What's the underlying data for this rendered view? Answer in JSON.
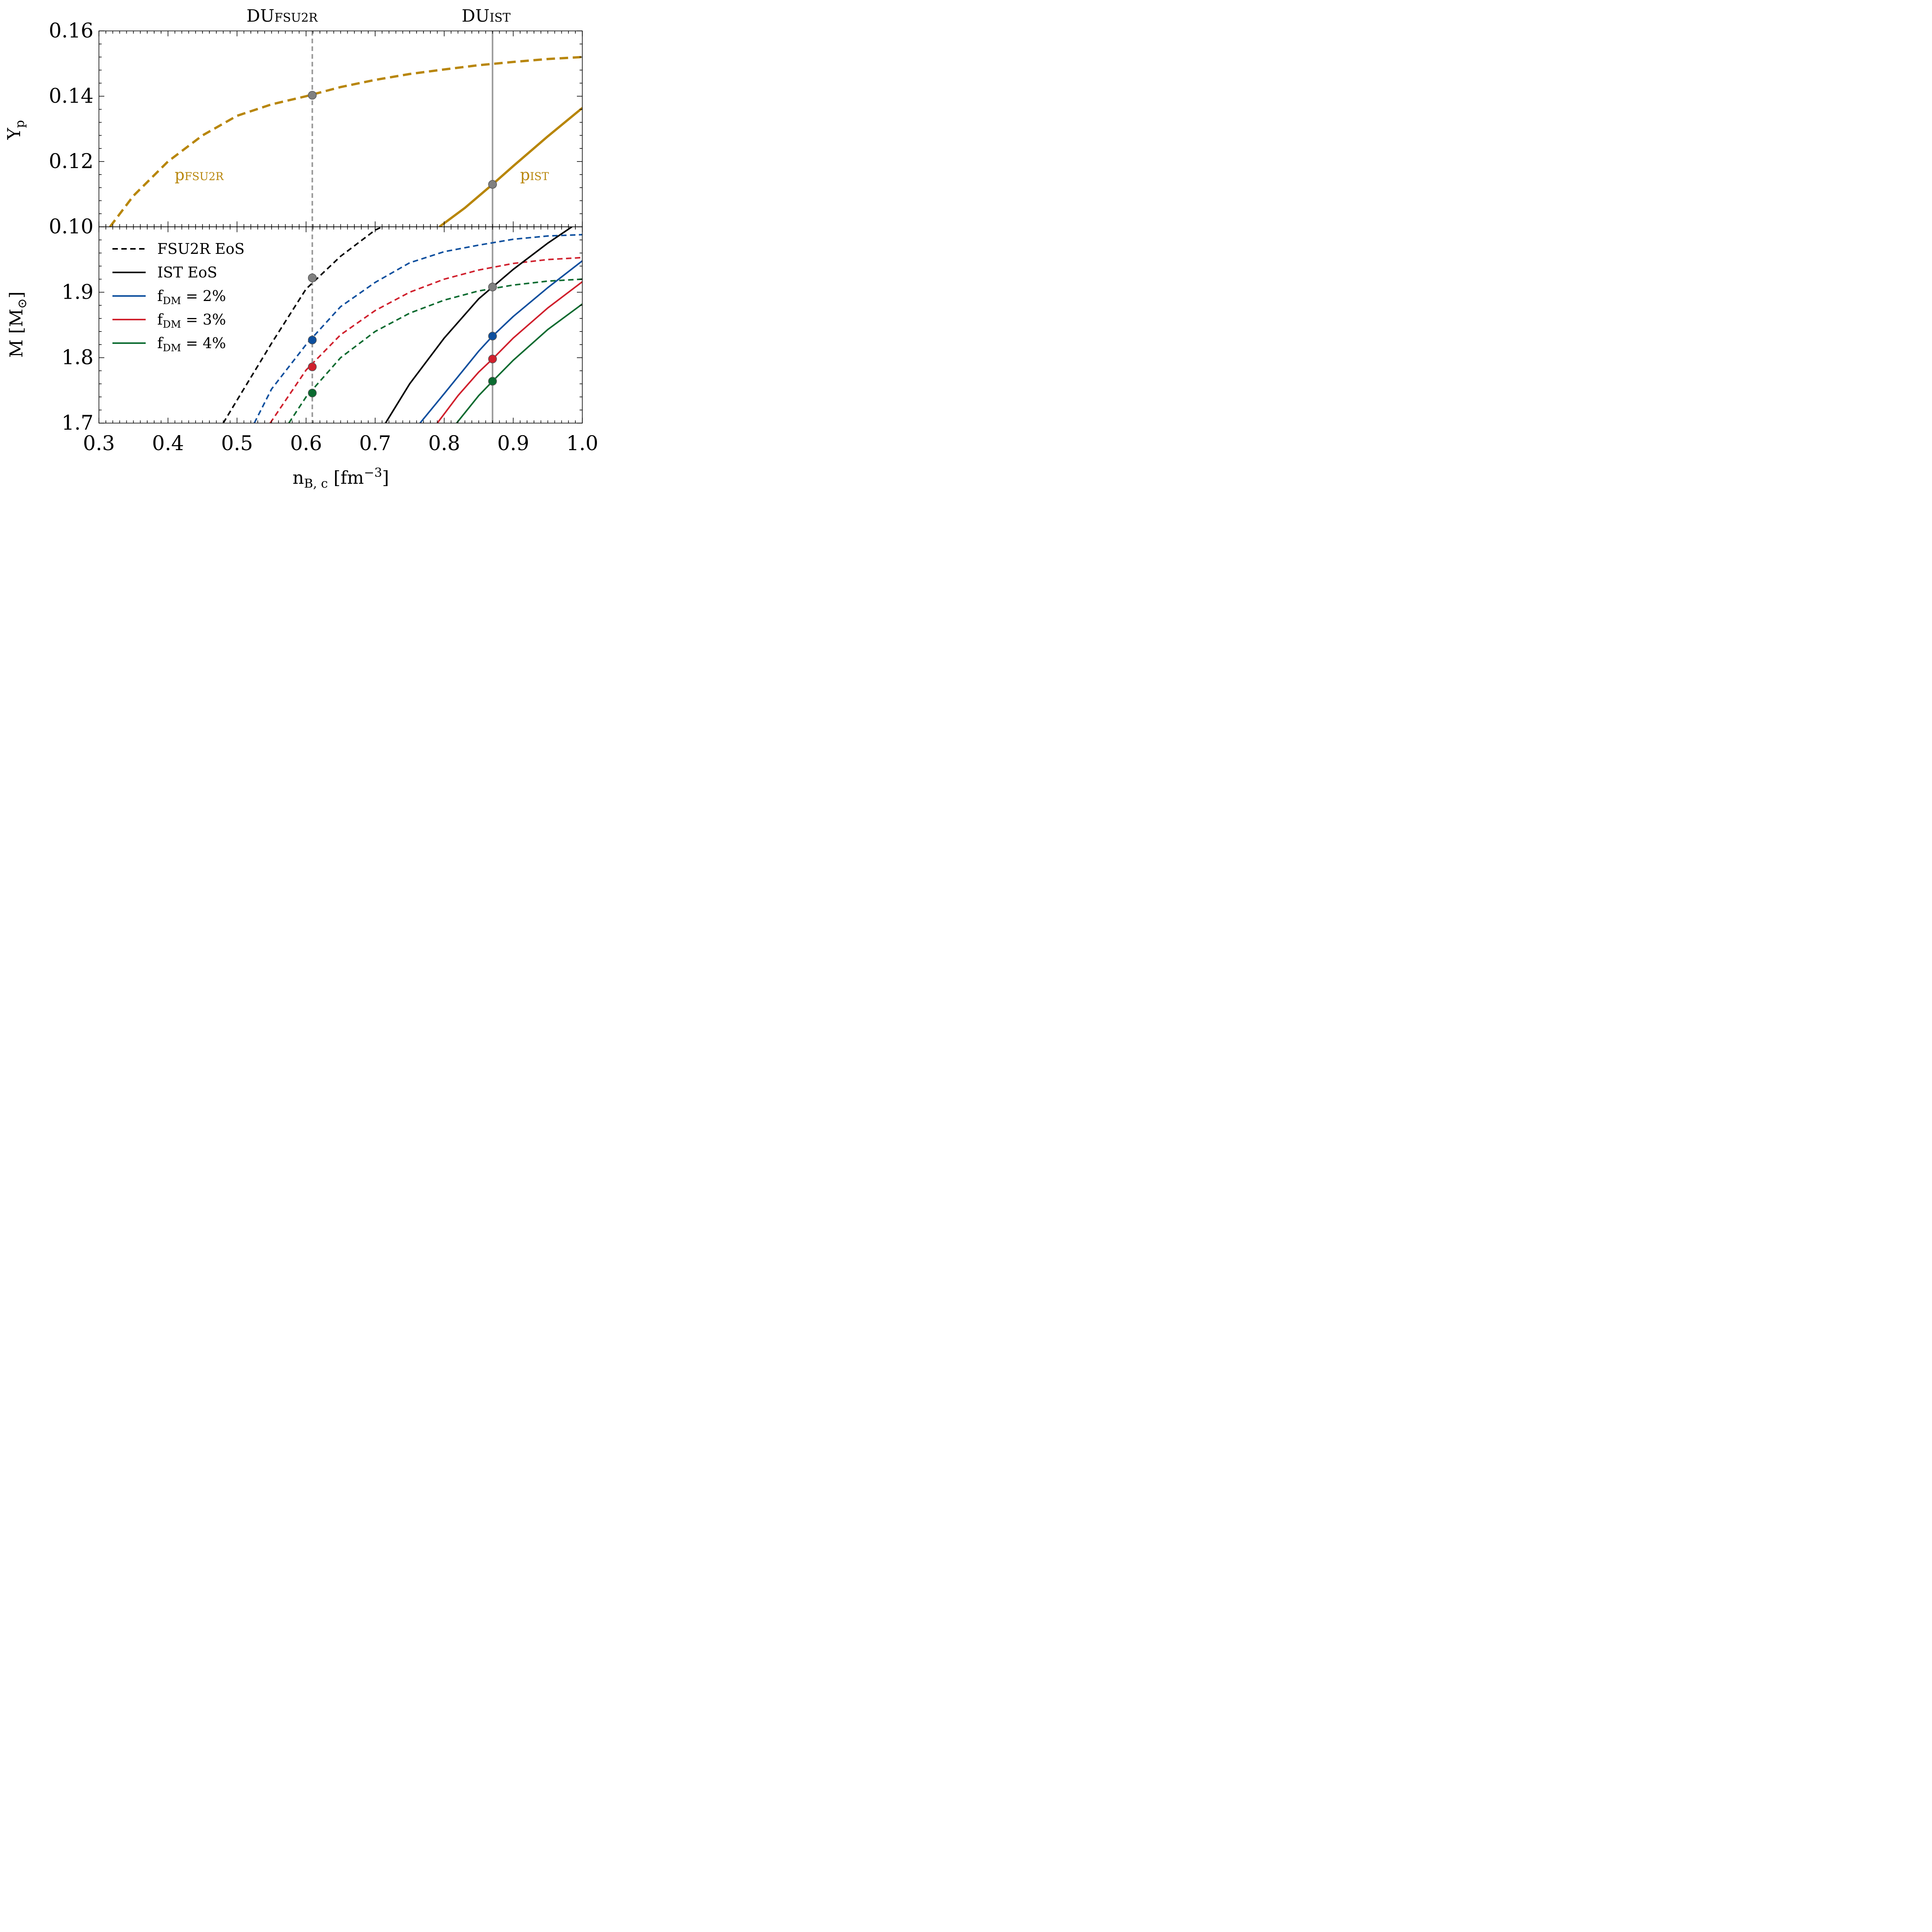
{
  "colors": {
    "proton": "#B8860B",
    "black": "#000000",
    "blue": "#0D4F9E",
    "red": "#D0202D",
    "green": "#0B6B30",
    "gray_marker": "#808080",
    "du_line": "#999999"
  },
  "top_labels": {
    "du_fsu2r": {
      "main": "DU",
      "sub": "FSU2R"
    },
    "du_ist": {
      "main": "DU",
      "sub": "IST"
    }
  },
  "chart_data": [
    {
      "type": "line",
      "panel": "top",
      "ylabel": {
        "main": "Y",
        "sub": "p"
      },
      "xlim": [
        0.3,
        1.0
      ],
      "ylim": [
        0.1,
        0.16
      ],
      "yticks": [
        "0.16",
        "0.14",
        "0.12",
        "0.10"
      ],
      "ytick_values": [
        0.16,
        0.14,
        0.12,
        0.1
      ],
      "xticks": [
        "0.3",
        "0.4",
        "0.5",
        "0.6",
        "0.7",
        "0.8",
        "0.9",
        "1.0"
      ],
      "xtick_values": [
        0.3,
        0.4,
        0.5,
        0.6,
        0.7,
        0.8,
        0.9,
        1.0
      ],
      "annotations": [
        {
          "main": "p",
          "sub": "FSU2R",
          "color": "#B8860B"
        },
        {
          "main": "p",
          "sub": "IST",
          "color": "#B8860B"
        }
      ],
      "series": [
        {
          "style": "dashed",
          "color": "#B8860B",
          "x": [
            0.316,
            0.35,
            0.4,
            0.45,
            0.5,
            0.55,
            0.6,
            0.65,
            0.7,
            0.75,
            0.8,
            0.85,
            0.9,
            0.95,
            1.0
          ],
          "y": [
            0.1,
            0.1095,
            0.12,
            0.128,
            0.134,
            0.1375,
            0.14,
            0.1428,
            0.145,
            0.1468,
            0.1482,
            0.1495,
            0.1505,
            0.1514,
            0.152
          ]
        },
        {
          "style": "solid",
          "color": "#B8860B",
          "x": [
            0.793,
            0.83,
            0.87,
            0.9,
            0.95,
            1.0
          ],
          "y": [
            0.1,
            0.1058,
            0.113,
            0.1186,
            0.1277,
            0.1364
          ]
        }
      ],
      "markers": [
        {
          "x": 0.609,
          "y": 0.1403,
          "color": "#808080"
        },
        {
          "x": 0.87,
          "y": 0.113,
          "color": "#808080"
        }
      ],
      "vlines": [
        {
          "x": 0.609,
          "style": "dashed",
          "color": "#999999"
        },
        {
          "x": 0.87,
          "style": "solid",
          "color": "#999999"
        }
      ]
    },
    {
      "type": "line",
      "panel": "bottom",
      "xlabel": {
        "main": "n",
        "sub": "B, c",
        "unit": " [fm",
        "sup": "−3",
        "close": "]"
      },
      "ylabel": {
        "main": "M [M",
        "sub": "⊙",
        "close": "]"
      },
      "xlim": [
        0.3,
        1.0
      ],
      "ylim": [
        1.7,
        2.0
      ],
      "yticks": [
        "1.9",
        "1.8",
        "1.7"
      ],
      "ytick_values": [
        1.9,
        1.8,
        1.7
      ],
      "xticks": [
        "0.3",
        "0.4",
        "0.5",
        "0.6",
        "0.7",
        "0.8",
        "0.9",
        "1.0"
      ],
      "xtick_values": [
        0.3,
        0.4,
        0.5,
        0.6,
        0.7,
        0.8,
        0.9,
        1.0
      ],
      "legend": {
        "position": "upper-left",
        "entries": [
          {
            "label": "FSU2R EoS",
            "style": "dashed",
            "color": "#000000"
          },
          {
            "label": "IST EoS",
            "style": "solid",
            "color": "#000000"
          },
          {
            "label_main": "f",
            "label_sub": "DM",
            "label_rest": " = 2%",
            "style": "solid",
            "color": "#0D4F9E"
          },
          {
            "label_main": "f",
            "label_sub": "DM",
            "label_rest": " = 3%",
            "style": "solid",
            "color": "#D0202D"
          },
          {
            "label_main": "f",
            "label_sub": "DM",
            "label_rest": " = 4%",
            "style": "solid",
            "color": "#0B6B30"
          }
        ]
      },
      "series": [
        {
          "name": "FSU2R EoS",
          "style": "dashed",
          "color": "#000000",
          "x": [
            0.48,
            0.5,
            0.55,
            0.6,
            0.65,
            0.7,
            0.71
          ],
          "y": [
            1.7,
            1.735,
            1.822,
            1.905,
            1.955,
            1.995,
            2.0
          ]
        },
        {
          "style": "dashed",
          "color": "#0D4F9E",
          "x": [
            0.525,
            0.55,
            0.6,
            0.65,
            0.7,
            0.75,
            0.8,
            0.85,
            0.9,
            0.95,
            1.0
          ],
          "y": [
            1.7,
            1.752,
            1.82,
            1.878,
            1.915,
            1.945,
            1.962,
            1.972,
            1.981,
            1.986,
            1.988
          ]
        },
        {
          "style": "dashed",
          "color": "#D0202D",
          "x": [
            0.548,
            0.6,
            0.65,
            0.7,
            0.75,
            0.8,
            0.85,
            0.9,
            0.95,
            1.0
          ],
          "y": [
            1.7,
            1.781,
            1.835,
            1.872,
            1.9,
            1.92,
            1.934,
            1.944,
            1.95,
            1.953
          ]
        },
        {
          "style": "dashed",
          "color": "#0B6B30",
          "x": [
            0.575,
            0.6,
            0.65,
            0.7,
            0.75,
            0.8,
            0.85,
            0.9,
            0.95,
            1.0
          ],
          "y": [
            1.7,
            1.74,
            1.8,
            1.84,
            1.868,
            1.888,
            1.902,
            1.911,
            1.917,
            1.92
          ]
        },
        {
          "name": "IST EoS",
          "style": "solid",
          "color": "#000000",
          "x": [
            0.715,
            0.75,
            0.8,
            0.85,
            0.87,
            0.9,
            0.95,
            0.985
          ],
          "y": [
            1.7,
            1.76,
            1.83,
            1.89,
            1.908,
            1.935,
            1.975,
            2.0
          ]
        },
        {
          "style": "solid",
          "color": "#0D4F9E",
          "x": [
            0.765,
            0.8,
            0.85,
            0.87,
            0.9,
            0.95,
            1.0
          ],
          "y": [
            1.7,
            1.745,
            1.81,
            1.833,
            1.863,
            1.907,
            1.948
          ]
        },
        {
          "style": "solid",
          "color": "#D0202D",
          "x": [
            0.79,
            0.82,
            0.85,
            0.87,
            0.9,
            0.95,
            1.0
          ],
          "y": [
            1.7,
            1.742,
            1.778,
            1.798,
            1.83,
            1.876,
            1.916
          ]
        },
        {
          "style": "solid",
          "color": "#0B6B30",
          "x": [
            0.818,
            0.85,
            0.87,
            0.9,
            0.95,
            1.0
          ],
          "y": [
            1.7,
            1.742,
            1.764,
            1.796,
            1.843,
            1.882
          ]
        }
      ],
      "markers": [
        {
          "x": 0.609,
          "y": 1.922,
          "color": "#808080"
        },
        {
          "x": 0.609,
          "y": 1.827,
          "color": "#0D4F9E"
        },
        {
          "x": 0.609,
          "y": 1.786,
          "color": "#D0202D"
        },
        {
          "x": 0.609,
          "y": 1.746,
          "color": "#0B6B30"
        },
        {
          "x": 0.87,
          "y": 1.908,
          "color": "#808080"
        },
        {
          "x": 0.87,
          "y": 1.833,
          "color": "#0D4F9E"
        },
        {
          "x": 0.87,
          "y": 1.798,
          "color": "#D0202D"
        },
        {
          "x": 0.87,
          "y": 1.764,
          "color": "#0B6B30"
        }
      ],
      "vlines": [
        {
          "x": 0.609,
          "style": "dashed",
          "color": "#999999"
        },
        {
          "x": 0.87,
          "style": "solid",
          "color": "#999999"
        }
      ]
    }
  ]
}
